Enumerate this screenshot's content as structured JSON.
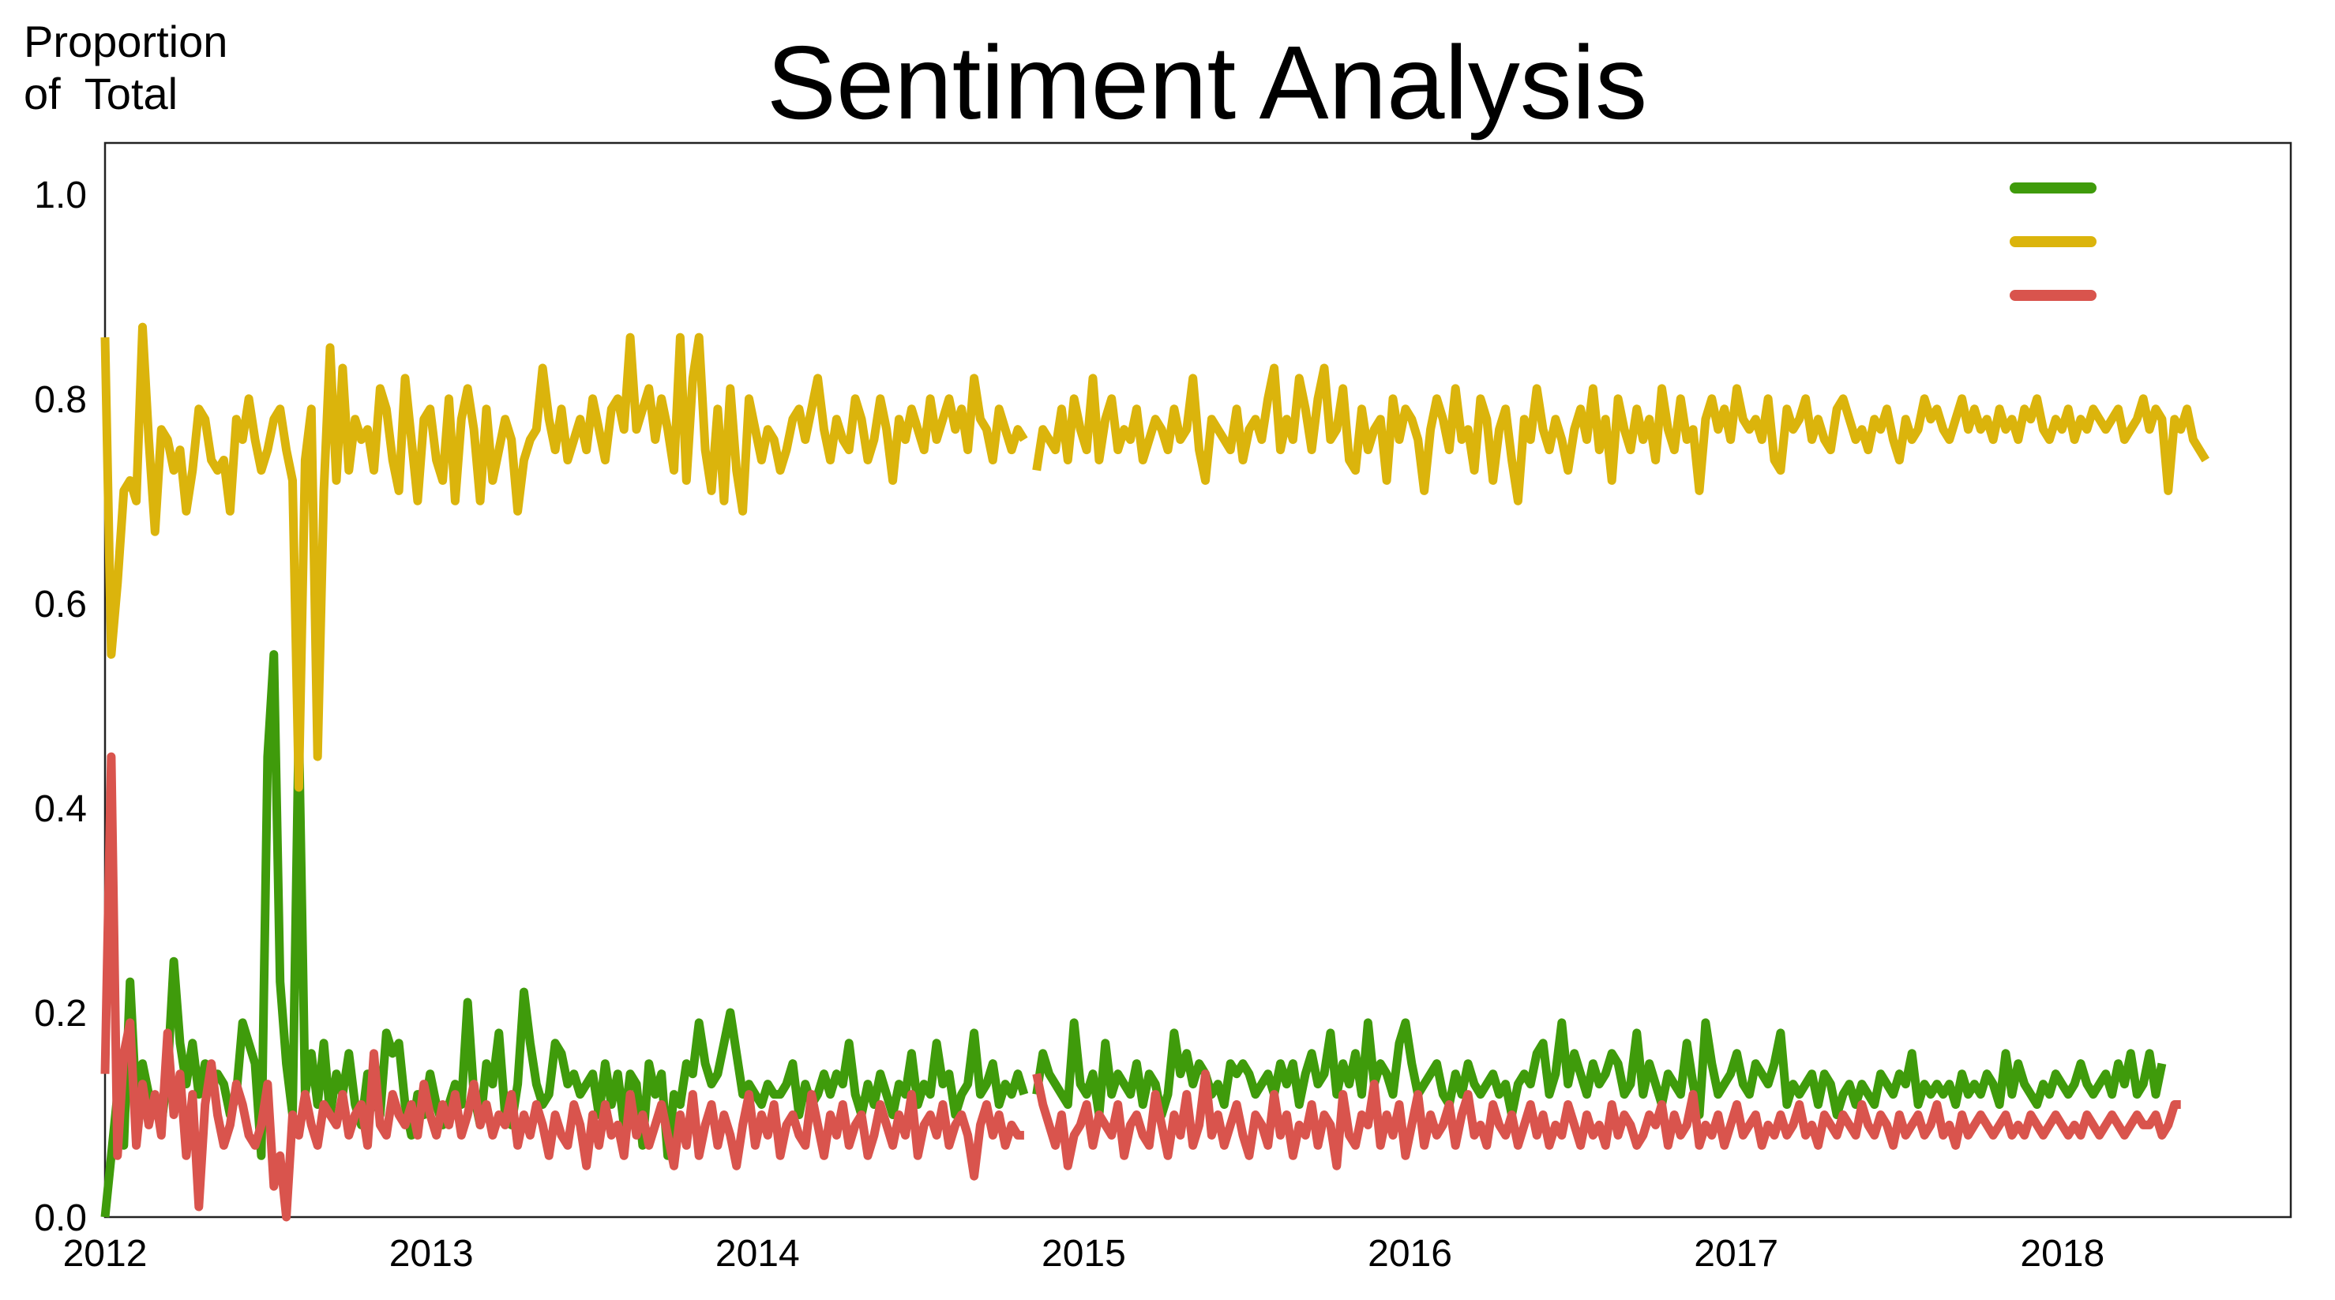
{
  "chart_data": {
    "type": "line",
    "title": "Sentiment  Analysis",
    "ylabel_lines": [
      "Proportion",
      "of  Total"
    ],
    "xlabel": "",
    "x_start": "2012-01",
    "x_step_weeks": 1,
    "xlim_years": [
      2012,
      2018.7
    ],
    "ylim": [
      0,
      1.05
    ],
    "yticks": [
      "0.0",
      "0.2",
      "0.4",
      "0.6",
      "0.8",
      "1.0"
    ],
    "xticks": [
      "2012",
      "2013",
      "2014",
      "2015",
      "2016",
      "2017",
      "2018"
    ],
    "grid": false,
    "legend": {
      "position": "top-right",
      "show_labels": false
    },
    "series": [
      {
        "color": "#3f9b0b",
        "values": [
          0.0,
          0.06,
          0.12,
          0.07,
          0.23,
          0.11,
          0.15,
          0.12,
          0.11,
          0.09,
          0.14,
          0.25,
          0.17,
          0.13,
          0.17,
          0.12,
          0.15,
          0.13,
          0.14,
          0.13,
          0.1,
          0.12,
          0.19,
          0.17,
          0.15,
          0.06,
          0.45,
          0.55,
          0.23,
          0.15,
          0.1,
          0.48,
          0.12,
          0.16,
          0.11,
          0.17,
          0.1,
          0.14,
          0.12,
          0.16,
          0.11,
          0.09,
          0.14,
          0.12,
          0.1,
          0.18,
          0.16,
          0.17,
          0.11,
          0.08,
          0.12,
          0.1,
          0.14,
          0.11,
          0.09,
          0.11,
          0.13,
          0.11,
          0.21,
          0.12,
          0.09,
          0.15,
          0.13,
          0.18,
          0.1,
          0.09,
          0.13,
          0.22,
          0.17,
          0.13,
          0.11,
          0.12,
          0.17,
          0.16,
          0.13,
          0.14,
          0.12,
          0.13,
          0.14,
          0.1,
          0.15,
          0.11,
          0.14,
          0.09,
          0.14,
          0.13,
          0.07,
          0.15,
          0.12,
          0.14,
          0.06,
          0.12,
          0.11,
          0.15,
          0.14,
          0.19,
          0.15,
          0.13,
          0.14,
          0.17,
          0.2,
          0.16,
          0.12,
          0.13,
          0.12,
          0.11,
          0.13,
          0.12,
          0.12,
          0.13,
          0.15,
          0.1,
          0.13,
          0.11,
          0.12,
          0.14,
          0.12,
          0.14,
          0.13,
          0.17,
          0.12,
          0.1,
          0.13,
          0.11,
          0.14,
          0.12,
          0.1,
          0.13,
          0.12,
          0.16,
          0.11,
          0.13,
          0.12,
          0.17,
          0.13,
          0.14,
          0.1,
          0.12,
          0.13,
          0.18,
          0.12,
          0.13,
          0.15,
          0.11,
          0.13,
          0.12,
          0.14,
          0.12,
          null,
          0.12,
          0.16,
          0.14,
          0.13,
          0.12,
          0.11,
          0.19,
          0.13,
          0.12,
          0.14,
          0.1,
          0.17,
          0.12,
          0.14,
          0.13,
          0.12,
          0.15,
          0.11,
          0.14,
          0.13,
          0.1,
          0.12,
          0.18,
          0.14,
          0.16,
          0.13,
          0.15,
          0.14,
          0.12,
          0.13,
          0.11,
          0.15,
          0.14,
          0.15,
          0.14,
          0.12,
          0.13,
          0.14,
          0.12,
          0.15,
          0.13,
          0.15,
          0.11,
          0.14,
          0.16,
          0.13,
          0.14,
          0.18,
          0.12,
          0.15,
          0.13,
          0.16,
          0.12,
          0.19,
          0.13,
          0.15,
          0.14,
          0.12,
          0.17,
          0.19,
          0.15,
          0.12,
          0.13,
          0.14,
          0.15,
          0.12,
          0.11,
          0.14,
          0.12,
          0.15,
          0.13,
          0.12,
          0.13,
          0.14,
          0.12,
          0.13,
          0.1,
          0.13,
          0.14,
          0.13,
          0.16,
          0.17,
          0.12,
          0.14,
          0.19,
          0.13,
          0.16,
          0.14,
          0.12,
          0.15,
          0.13,
          0.14,
          0.16,
          0.15,
          0.12,
          0.13,
          0.18,
          0.12,
          0.15,
          0.13,
          0.11,
          0.14,
          0.13,
          0.12,
          0.17,
          0.13,
          0.1,
          0.19,
          0.15,
          0.12,
          0.13,
          0.14,
          0.16,
          0.13,
          0.12,
          0.15,
          0.14,
          0.13,
          0.15,
          0.18,
          0.11,
          0.13,
          0.12,
          0.13,
          0.14,
          0.11,
          0.14,
          0.13,
          0.1,
          0.12,
          0.13,
          0.11,
          0.13,
          0.12,
          0.11,
          0.14,
          0.13,
          0.12,
          0.14,
          0.13,
          0.16,
          0.11,
          0.13,
          0.12,
          0.13,
          0.12,
          0.13,
          0.11,
          0.14,
          0.12,
          0.13,
          0.12,
          0.14,
          0.13,
          0.11,
          0.16,
          0.12,
          0.15,
          0.13,
          0.12,
          0.11,
          0.13,
          0.12,
          0.14,
          0.13,
          0.12,
          0.13,
          0.15,
          0.13,
          0.12,
          0.13,
          0.14,
          0.12,
          0.15,
          0.13,
          0.16,
          0.12,
          0.13,
          0.16,
          0.12,
          0.15
        ]
      },
      {
        "color": "#dbb40c",
        "values": [
          0.86,
          0.55,
          0.62,
          0.71,
          0.72,
          0.7,
          0.87,
          0.76,
          0.67,
          0.77,
          0.76,
          0.73,
          0.75,
          0.69,
          0.73,
          0.79,
          0.78,
          0.74,
          0.73,
          0.74,
          0.69,
          0.78,
          0.76,
          0.8,
          0.76,
          0.73,
          0.75,
          0.78,
          0.79,
          0.75,
          0.72,
          0.42,
          0.74,
          0.79,
          0.45,
          0.71,
          0.85,
          0.72,
          0.83,
          0.73,
          0.78,
          0.76,
          0.77,
          0.73,
          0.81,
          0.79,
          0.74,
          0.71,
          0.82,
          0.76,
          0.7,
          0.78,
          0.79,
          0.74,
          0.72,
          0.8,
          0.7,
          0.78,
          0.81,
          0.77,
          0.7,
          0.79,
          0.72,
          0.75,
          0.78,
          0.76,
          0.69,
          0.74,
          0.76,
          0.77,
          0.83,
          0.78,
          0.75,
          0.79,
          0.74,
          0.76,
          0.78,
          0.75,
          0.8,
          0.77,
          0.74,
          0.79,
          0.8,
          0.77,
          0.86,
          0.77,
          0.79,
          0.81,
          0.76,
          0.8,
          0.77,
          0.73,
          0.86,
          0.72,
          0.82,
          0.86,
          0.75,
          0.71,
          0.79,
          0.7,
          0.81,
          0.73,
          0.69,
          0.8,
          0.77,
          0.74,
          0.77,
          0.76,
          0.73,
          0.75,
          0.78,
          0.79,
          0.76,
          0.79,
          0.82,
          0.77,
          0.74,
          0.78,
          0.76,
          0.75,
          0.8,
          0.78,
          0.74,
          0.76,
          0.8,
          0.77,
          0.72,
          0.78,
          0.76,
          0.79,
          0.77,
          0.75,
          0.8,
          0.76,
          0.78,
          0.8,
          0.77,
          0.79,
          0.75,
          0.82,
          0.78,
          0.77,
          0.74,
          0.79,
          0.77,
          0.75,
          0.77,
          0.76,
          null,
          0.73,
          0.77,
          0.76,
          0.75,
          0.79,
          0.74,
          0.8,
          0.77,
          0.75,
          0.82,
          0.74,
          0.78,
          0.8,
          0.75,
          0.77,
          0.76,
          0.79,
          0.74,
          0.76,
          0.78,
          0.77,
          0.75,
          0.79,
          0.76,
          0.77,
          0.82,
          0.75,
          0.72,
          0.78,
          0.77,
          0.76,
          0.75,
          0.79,
          0.74,
          0.77,
          0.78,
          0.76,
          0.8,
          0.83,
          0.75,
          0.78,
          0.76,
          0.82,
          0.79,
          0.75,
          0.8,
          0.83,
          0.76,
          0.77,
          0.81,
          0.74,
          0.73,
          0.79,
          0.75,
          0.77,
          0.78,
          0.72,
          0.8,
          0.76,
          0.79,
          0.78,
          0.76,
          0.71,
          0.77,
          0.8,
          0.78,
          0.75,
          0.81,
          0.76,
          0.77,
          0.73,
          0.8,
          0.78,
          0.72,
          0.77,
          0.79,
          0.74,
          0.7,
          0.78,
          0.76,
          0.81,
          0.77,
          0.75,
          0.78,
          0.76,
          0.73,
          0.77,
          0.79,
          0.76,
          0.81,
          0.75,
          0.78,
          0.72,
          0.8,
          0.77,
          0.75,
          0.79,
          0.76,
          0.78,
          0.74,
          0.81,
          0.77,
          0.75,
          0.8,
          0.76,
          0.77,
          0.71,
          0.78,
          0.8,
          0.77,
          0.79,
          0.76,
          0.81,
          0.78,
          0.77,
          0.78,
          0.76,
          0.8,
          0.74,
          0.73,
          0.79,
          0.77,
          0.78,
          0.8,
          0.76,
          0.78,
          0.76,
          0.75,
          0.79,
          0.8,
          0.78,
          0.76,
          0.77,
          0.75,
          0.78,
          0.77,
          0.79,
          0.76,
          0.74,
          0.78,
          0.76,
          0.77,
          0.8,
          0.78,
          0.79,
          0.77,
          0.76,
          0.78,
          0.8,
          0.77,
          0.79,
          0.77,
          0.78,
          0.76,
          0.79,
          0.77,
          0.78,
          0.76,
          0.79,
          0.78,
          0.8,
          0.77,
          0.76,
          0.78,
          0.77,
          0.79,
          0.76,
          0.78,
          0.77,
          0.79,
          0.78,
          0.77,
          0.78,
          0.79,
          0.76,
          0.77,
          0.78,
          0.8,
          0.77,
          0.79,
          0.78,
          0.71,
          0.78,
          0.77,
          0.79,
          0.76,
          0.75,
          0.74
        ]
      },
      {
        "color": "#d9544d",
        "values": [
          0.14,
          0.45,
          0.06,
          0.16,
          0.19,
          0.07,
          0.13,
          0.09,
          0.12,
          0.08,
          0.18,
          0.1,
          0.14,
          0.06,
          0.12,
          0.01,
          0.11,
          0.15,
          0.1,
          0.07,
          0.09,
          0.13,
          0.11,
          0.08,
          0.07,
          0.09,
          0.13,
          0.03,
          0.06,
          0.0,
          0.1,
          0.08,
          0.12,
          0.09,
          0.07,
          0.11,
          0.1,
          0.09,
          0.12,
          0.08,
          0.1,
          0.11,
          0.07,
          0.16,
          0.09,
          0.08,
          0.12,
          0.1,
          0.09,
          0.11,
          0.08,
          0.13,
          0.1,
          0.08,
          0.11,
          0.09,
          0.12,
          0.08,
          0.1,
          0.13,
          0.09,
          0.11,
          0.08,
          0.1,
          0.09,
          0.12,
          0.07,
          0.1,
          0.08,
          0.11,
          0.09,
          0.06,
          0.1,
          0.08,
          0.07,
          0.11,
          0.09,
          0.05,
          0.1,
          0.07,
          0.11,
          0.08,
          0.09,
          0.06,
          0.12,
          0.08,
          0.1,
          0.07,
          0.09,
          0.11,
          0.08,
          0.05,
          0.1,
          0.07,
          0.12,
          0.06,
          0.09,
          0.11,
          0.07,
          0.1,
          0.08,
          0.05,
          0.09,
          0.12,
          0.07,
          0.1,
          0.08,
          0.11,
          0.06,
          0.09,
          0.1,
          0.08,
          0.07,
          0.12,
          0.09,
          0.06,
          0.1,
          0.08,
          0.11,
          0.07,
          0.09,
          0.1,
          0.06,
          0.08,
          0.11,
          0.09,
          0.07,
          0.1,
          0.08,
          0.12,
          0.06,
          0.09,
          0.1,
          0.08,
          0.11,
          0.07,
          0.09,
          0.1,
          0.08,
          0.04,
          0.09,
          0.11,
          0.08,
          0.1,
          0.07,
          0.09,
          0.08,
          0.08,
          null,
          0.14,
          0.11,
          0.09,
          0.07,
          0.1,
          0.05,
          0.08,
          0.09,
          0.11,
          0.07,
          0.1,
          0.09,
          0.08,
          0.11,
          0.06,
          0.09,
          0.1,
          0.08,
          0.07,
          0.12,
          0.09,
          0.06,
          0.1,
          0.08,
          0.12,
          0.07,
          0.09,
          0.14,
          0.08,
          0.1,
          0.07,
          0.09,
          0.11,
          0.08,
          0.06,
          0.1,
          0.09,
          0.07,
          0.12,
          0.08,
          0.1,
          0.06,
          0.09,
          0.08,
          0.11,
          0.07,
          0.1,
          0.09,
          0.05,
          0.12,
          0.08,
          0.07,
          0.1,
          0.09,
          0.13,
          0.07,
          0.1,
          0.08,
          0.11,
          0.06,
          0.09,
          0.12,
          0.07,
          0.1,
          0.08,
          0.09,
          0.11,
          0.07,
          0.1,
          0.12,
          0.08,
          0.09,
          0.07,
          0.11,
          0.09,
          0.08,
          0.1,
          0.07,
          0.09,
          0.11,
          0.08,
          0.1,
          0.07,
          0.09,
          0.08,
          0.11,
          0.09,
          0.07,
          0.1,
          0.08,
          0.09,
          0.07,
          0.11,
          0.08,
          0.1,
          0.09,
          0.07,
          0.08,
          0.1,
          0.09,
          0.11,
          0.07,
          0.1,
          0.08,
          0.09,
          0.12,
          0.07,
          0.09,
          0.08,
          0.1,
          0.07,
          0.09,
          0.11,
          0.08,
          0.09,
          0.1,
          0.07,
          0.09,
          0.08,
          0.1,
          0.08,
          0.09,
          0.11,
          0.08,
          0.09,
          0.07,
          0.1,
          0.09,
          0.08,
          0.1,
          0.09,
          0.08,
          0.11,
          0.09,
          0.08,
          0.1,
          0.09,
          0.07,
          0.1,
          0.08,
          0.09,
          0.1,
          0.08,
          0.09,
          0.11,
          0.08,
          0.09,
          0.07,
          0.1,
          0.08,
          0.09,
          0.1,
          0.09,
          0.08,
          0.09,
          0.1,
          0.08,
          0.09,
          0.08,
          0.1,
          0.09,
          0.08,
          0.09,
          0.1,
          0.09,
          0.08,
          0.09,
          0.08,
          0.1,
          0.09,
          0.08,
          0.09,
          0.1,
          0.09,
          0.08,
          0.09,
          0.1,
          0.09,
          0.09,
          0.1,
          0.08,
          0.09,
          0.11,
          0.11
        ]
      }
    ]
  }
}
